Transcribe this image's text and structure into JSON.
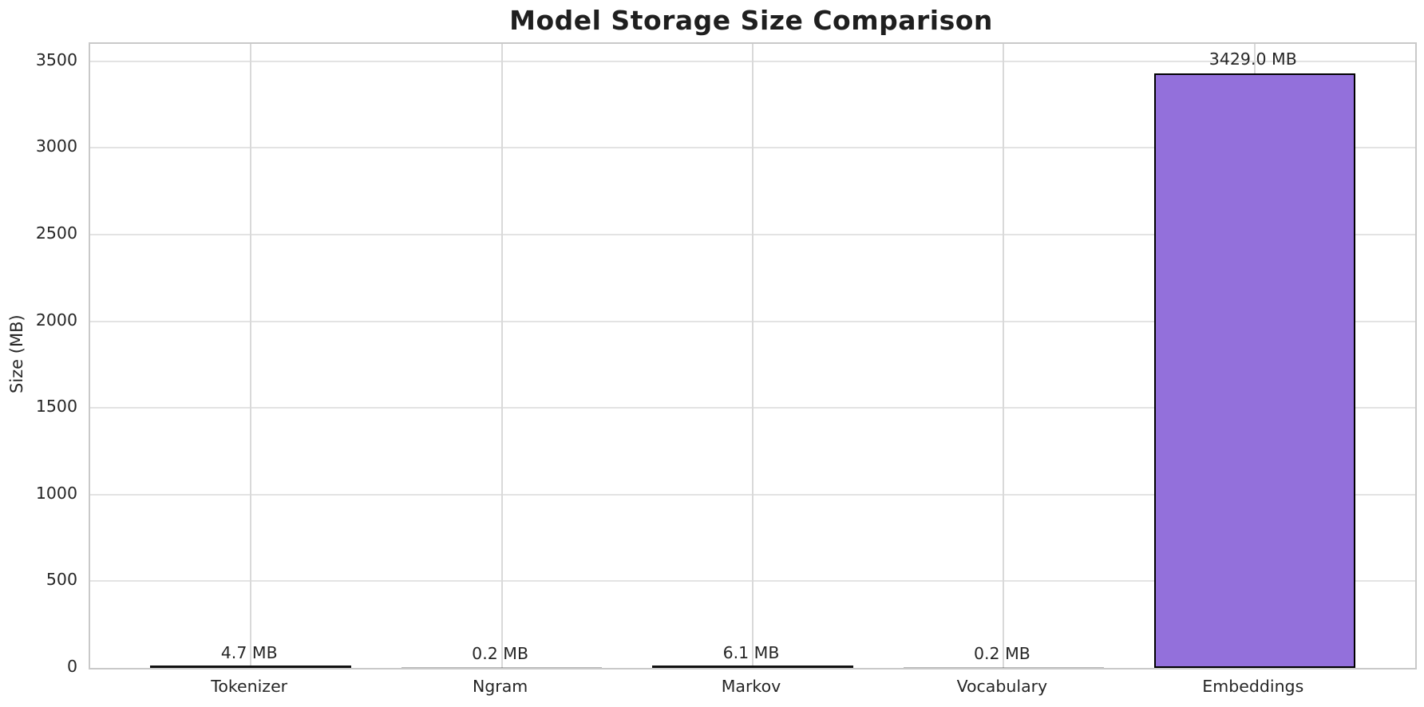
{
  "chart_data": {
    "type": "bar",
    "title": "Model Storage Size Comparison",
    "xlabel": "",
    "ylabel": "Size (MB)",
    "categories": [
      "Tokenizer",
      "Ngram",
      "Markov",
      "Vocabulary",
      "Embeddings"
    ],
    "values": [
      4.7,
      0.2,
      6.1,
      0.2,
      3429.0
    ],
    "value_labels": [
      "4.7 MB",
      "0.2 MB",
      "6.1 MB",
      "0.2 MB",
      "3429.0 MB"
    ],
    "yticks": [
      0,
      500,
      1000,
      1500,
      2000,
      2500,
      3000,
      3500
    ],
    "ylim": [
      0,
      3600
    ],
    "grid": true,
    "legend": "none",
    "bar_color": "#9370DB",
    "bar_edge_color": "#000000"
  }
}
